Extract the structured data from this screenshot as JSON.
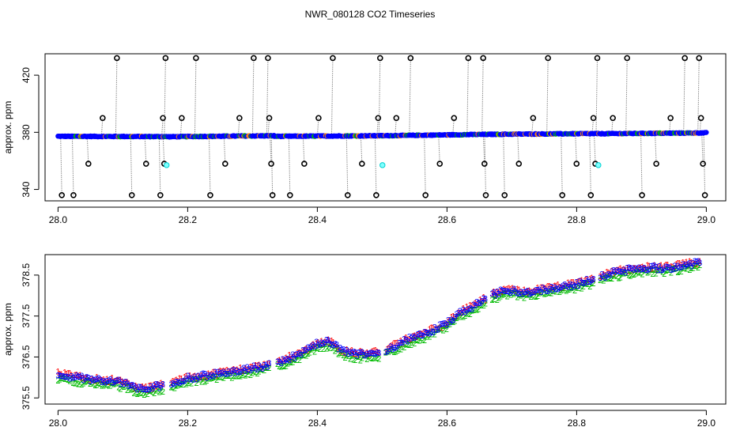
{
  "title": "NWR_080128  CO2 Timeseries",
  "chart_data": [
    {
      "type": "scatter",
      "panel": "top",
      "title": "NWR_080128  CO2 Timeseries",
      "xlabel": "",
      "ylabel": "approx. ppm",
      "xlim": [
        27.98,
        29.03
      ],
      "ylim": [
        332,
        435
      ],
      "xticks": [
        28.0,
        28.2,
        28.4,
        28.6,
        28.8,
        29.0
      ],
      "xtick_labels": [
        "28.0",
        "28.2",
        "28.4",
        "28.6",
        "28.8",
        "29.0"
      ],
      "yticks": [
        340,
        380,
        420
      ],
      "ytick_labels": [
        "340",
        "380",
        "420"
      ],
      "baseline_segments": [
        {
          "x": [
            28.0,
            28.167
          ],
          "y": [
            377.2,
            377.0
          ]
        },
        {
          "x": [
            28.167,
            28.333
          ],
          "y": [
            376.9,
            377.6
          ]
        },
        {
          "x": [
            28.333,
            28.5
          ],
          "y": [
            377.2,
            377.6
          ]
        },
        {
          "x": [
            28.5,
            28.667
          ],
          "y": [
            377.6,
            378.6
          ]
        },
        {
          "x": [
            28.667,
            28.833
          ],
          "y": [
            378.6,
            379.1
          ]
        },
        {
          "x": [
            28.833,
            29.0
          ],
          "y": [
            379.0,
            379.6
          ]
        }
      ],
      "cyan_points": {
        "x": [
          28.165,
          28.498,
          28.831
        ],
        "y": [
          357,
          357,
          357
        ]
      },
      "spikes": [
        {
          "x": 28.004,
          "y": 336
        },
        {
          "x": 28.022,
          "y": 336
        },
        {
          "x": 28.045,
          "y": 358
        },
        {
          "x": 28.067,
          "y": 390
        },
        {
          "x": 28.089,
          "y": 432
        },
        {
          "x": 28.112,
          "y": 336
        },
        {
          "x": 28.134,
          "y": 358
        },
        {
          "x": 28.156,
          "y": 336
        },
        {
          "x": 28.16,
          "y": 390
        },
        {
          "x": 28.162,
          "y": 358
        },
        {
          "x": 28.164,
          "y": 432
        },
        {
          "x": 28.189,
          "y": 390
        },
        {
          "x": 28.211,
          "y": 432
        },
        {
          "x": 28.233,
          "y": 336
        },
        {
          "x": 28.256,
          "y": 358
        },
        {
          "x": 28.278,
          "y": 390
        },
        {
          "x": 28.3,
          "y": 432
        },
        {
          "x": 28.322,
          "y": 432
        },
        {
          "x": 28.324,
          "y": 390
        },
        {
          "x": 28.327,
          "y": 358
        },
        {
          "x": 28.329,
          "y": 336
        },
        {
          "x": 28.356,
          "y": 336
        },
        {
          "x": 28.378,
          "y": 358
        },
        {
          "x": 28.4,
          "y": 390
        },
        {
          "x": 28.422,
          "y": 432
        },
        {
          "x": 28.445,
          "y": 336
        },
        {
          "x": 28.467,
          "y": 358
        },
        {
          "x": 28.489,
          "y": 336
        },
        {
          "x": 28.492,
          "y": 390
        },
        {
          "x": 28.495,
          "y": 432
        },
        {
          "x": 28.52,
          "y": 390
        },
        {
          "x": 28.542,
          "y": 432
        },
        {
          "x": 28.565,
          "y": 336
        },
        {
          "x": 28.587,
          "y": 358
        },
        {
          "x": 28.609,
          "y": 390
        },
        {
          "x": 28.631,
          "y": 432
        },
        {
          "x": 28.654,
          "y": 432
        },
        {
          "x": 28.656,
          "y": 358
        },
        {
          "x": 28.658,
          "y": 336
        },
        {
          "x": 28.687,
          "y": 336
        },
        {
          "x": 28.709,
          "y": 358
        },
        {
          "x": 28.731,
          "y": 390
        },
        {
          "x": 28.754,
          "y": 432
        },
        {
          "x": 28.776,
          "y": 336
        },
        {
          "x": 28.798,
          "y": 358
        },
        {
          "x": 28.82,
          "y": 336
        },
        {
          "x": 28.824,
          "y": 390
        },
        {
          "x": 28.827,
          "y": 358
        },
        {
          "x": 28.83,
          "y": 432
        },
        {
          "x": 28.854,
          "y": 390
        },
        {
          "x": 28.876,
          "y": 432
        },
        {
          "x": 28.899,
          "y": 336
        },
        {
          "x": 28.921,
          "y": 358
        },
        {
          "x": 28.943,
          "y": 390
        },
        {
          "x": 28.965,
          "y": 432
        },
        {
          "x": 28.987,
          "y": 432
        },
        {
          "x": 28.99,
          "y": 390
        },
        {
          "x": 28.993,
          "y": 358
        },
        {
          "x": 28.996,
          "y": 336
        }
      ]
    },
    {
      "type": "scatter",
      "panel": "bottom",
      "xlabel": "",
      "ylabel": "approx. ppm",
      "xlim": [
        27.98,
        29.03
      ],
      "ylim": [
        375.35,
        379.0
      ],
      "xticks": [
        28.0,
        28.2,
        28.4,
        28.6,
        28.8,
        29.0
      ],
      "xtick_labels": [
        "28.0",
        "28.2",
        "28.4",
        "28.6",
        "28.8",
        "29.0"
      ],
      "yticks": [
        375.5,
        376.5,
        377.5,
        378.5
      ],
      "ytick_labels": [
        "375.5",
        "376.5",
        "377.5",
        "378.5"
      ],
      "markers": [
        {
          "symbol": "1",
          "color": "#ff0000",
          "offset": 0.05
        },
        {
          "symbol": "2",
          "color": "#00bb00",
          "offset": -0.07
        },
        {
          "symbol": "3",
          "color": "#0000ff",
          "offset": 0.03
        }
      ],
      "trend": {
        "x": [
          28.0,
          28.02,
          28.04,
          28.06,
          28.08,
          28.1,
          28.12,
          28.135,
          28.15,
          28.165,
          28.17,
          28.2,
          28.24,
          28.28,
          28.32,
          28.33,
          28.35,
          28.38,
          28.4,
          28.42,
          28.44,
          28.46,
          28.48,
          28.5,
          28.52,
          28.54,
          28.56,
          28.58,
          28.6,
          28.62,
          28.64,
          28.66,
          28.68,
          28.7,
          28.72,
          28.74,
          28.76,
          28.78,
          28.8,
          28.82,
          28.84,
          28.86,
          28.88,
          28.9,
          28.92,
          28.94,
          28.96,
          28.98,
          28.99
        ],
        "y": [
          376.05,
          376.0,
          375.95,
          375.92,
          375.9,
          375.85,
          375.72,
          375.68,
          375.75,
          375.8,
          375.82,
          375.95,
          376.05,
          376.15,
          376.25,
          376.3,
          376.4,
          376.6,
          376.8,
          376.85,
          376.6,
          376.55,
          376.55,
          376.6,
          376.75,
          376.9,
          377.0,
          377.15,
          377.3,
          377.55,
          377.7,
          377.9,
          378.05,
          378.1,
          378.05,
          378.1,
          378.15,
          378.2,
          378.25,
          378.35,
          378.45,
          378.55,
          378.6,
          378.65,
          378.65,
          378.65,
          378.7,
          378.75,
          378.78
        ]
      }
    }
  ]
}
